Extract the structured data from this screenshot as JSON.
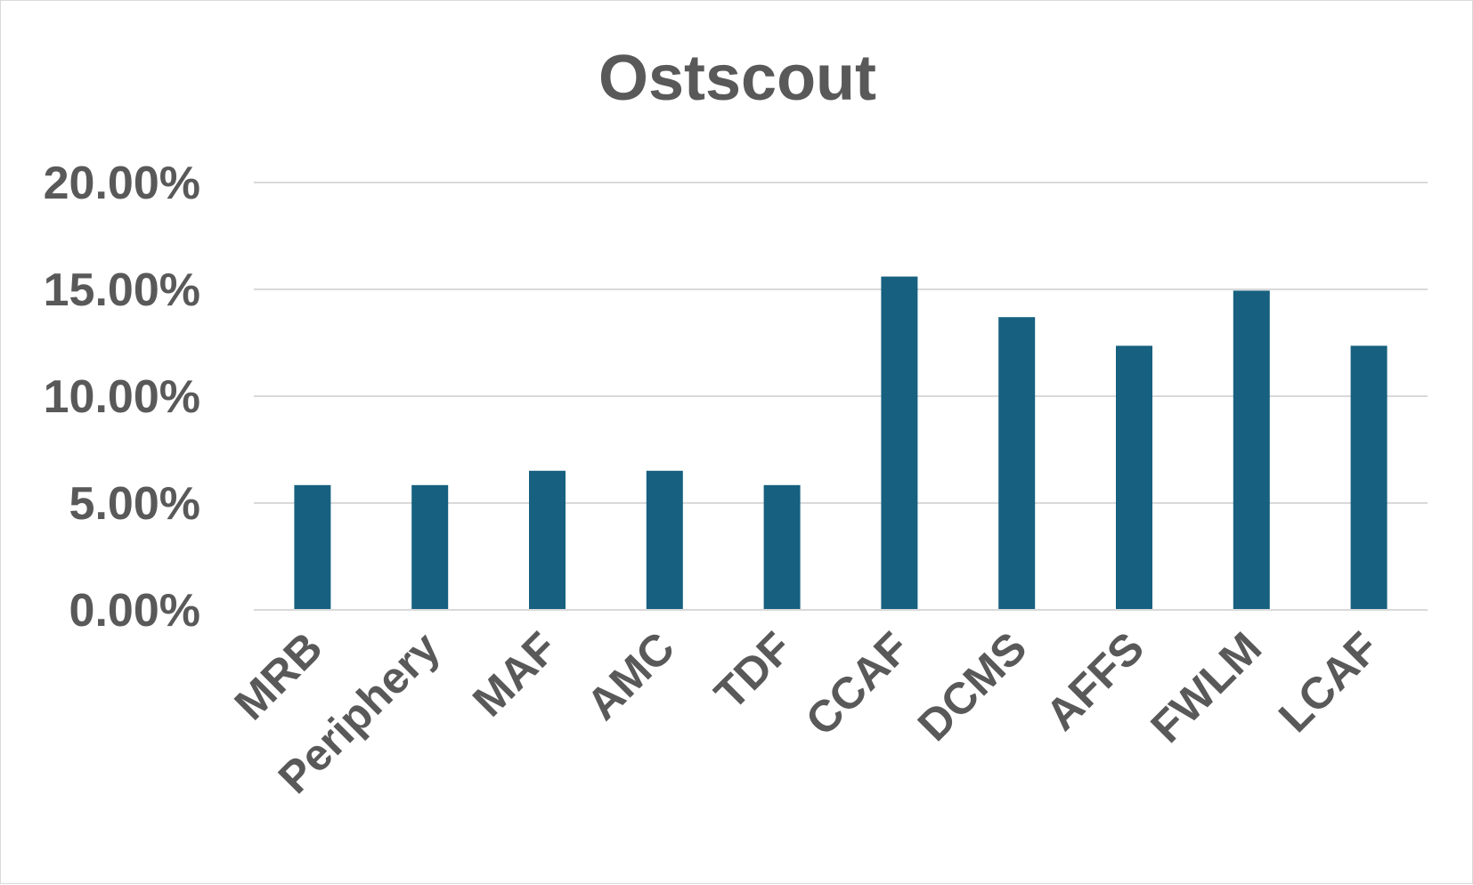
{
  "chart_data": {
    "type": "bar",
    "title": "Ostscout",
    "xlabel": "",
    "ylabel": "",
    "categories": [
      "MRB",
      "Periphery",
      "MAF",
      "AMC",
      "TDF",
      "CCAF",
      "DCMS",
      "AFFS",
      "FWLM",
      "LCAF"
    ],
    "values": [
      0.0584,
      0.0584,
      0.0651,
      0.0651,
      0.0584,
      0.156,
      0.137,
      0.1236,
      0.1494,
      0.1236
    ],
    "ylim": [
      0,
      0.2
    ],
    "yticks": [
      0,
      0.05,
      0.1,
      0.15,
      0.2
    ],
    "ytick_labels": [
      "0.00%",
      "5.00%",
      "10.00%",
      "15.00%",
      "20.00%"
    ],
    "x_label_rotation": "45deg",
    "grid": true,
    "legend": "none",
    "bar_color": "#17607f"
  }
}
